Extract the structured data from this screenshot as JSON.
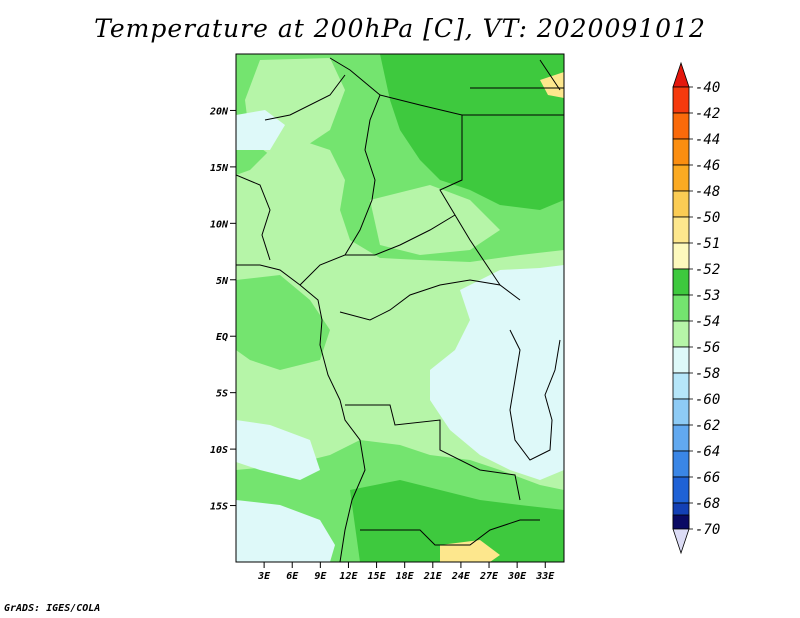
{
  "title": "Temperature at 200hPa [C], VT: 2020091012",
  "credit": "GrADS: IGES/COLA",
  "map": {
    "lon_range": [
      0,
      35
    ],
    "lat_range": [
      -20,
      25
    ],
    "lat_ticks": [
      {
        "value": 20,
        "label": "20N"
      },
      {
        "value": 15,
        "label": "15N"
      },
      {
        "value": 10,
        "label": "10N"
      },
      {
        "value": 5,
        "label": "5N"
      },
      {
        "value": 0,
        "label": "EQ"
      },
      {
        "value": -5,
        "label": "5S"
      },
      {
        "value": -10,
        "label": "10S"
      },
      {
        "value": -15,
        "label": "15S"
      }
    ],
    "lon_ticks": [
      {
        "value": 3,
        "label": "3E"
      },
      {
        "value": 6,
        "label": "6E"
      },
      {
        "value": 9,
        "label": "9E"
      },
      {
        "value": 12,
        "label": "12E"
      },
      {
        "value": 15,
        "label": "15E"
      },
      {
        "value": 18,
        "label": "18E"
      },
      {
        "value": 21,
        "label": "21E"
      },
      {
        "value": 24,
        "label": "24E"
      },
      {
        "value": 27,
        "label": "27E"
      },
      {
        "value": 30,
        "label": "30E"
      },
      {
        "value": 33,
        "label": "33E"
      }
    ]
  },
  "colorbar": {
    "levels": [
      {
        "label": "-40",
        "color": "#f53a0d"
      },
      {
        "label": "-42",
        "color": "#fa6a0a"
      },
      {
        "label": "-44",
        "color": "#fb8e10"
      },
      {
        "label": "-46",
        "color": "#fbaa22"
      },
      {
        "label": "-48",
        "color": "#fbcc54"
      },
      {
        "label": "-50",
        "color": "#fde78d"
      },
      {
        "label": "-51",
        "color": "#fdf9bd"
      },
      {
        "label": "-52",
        "color": "#3ec93e"
      },
      {
        "label": "-53",
        "color": "#74e46f"
      },
      {
        "label": "-54",
        "color": "#b6f5a8"
      },
      {
        "label": "-56",
        "color": "#def9f9"
      },
      {
        "label": "-58",
        "color": "#b6e6f9"
      },
      {
        "label": "-60",
        "color": "#8ecbf5"
      },
      {
        "label": "-62",
        "color": "#62a9f0"
      },
      {
        "label": "-64",
        "color": "#3a86e6"
      },
      {
        "label": "-66",
        "color": "#1f62d6"
      },
      {
        "label": "-68",
        "color": "#1340b5"
      },
      {
        "label": "-70",
        "color": "#0a1e8a"
      }
    ],
    "top_arrow_color": "#e4170c",
    "bottom_arrow_color": "#dcdcf5",
    "bottom_block_color": "#0a0a64"
  },
  "field_colors": {
    "c52": "#3ec93e",
    "c53": "#74e46f",
    "c54": "#b6f5a8",
    "c56": "#def9f9",
    "c50": "#fde78d"
  }
}
